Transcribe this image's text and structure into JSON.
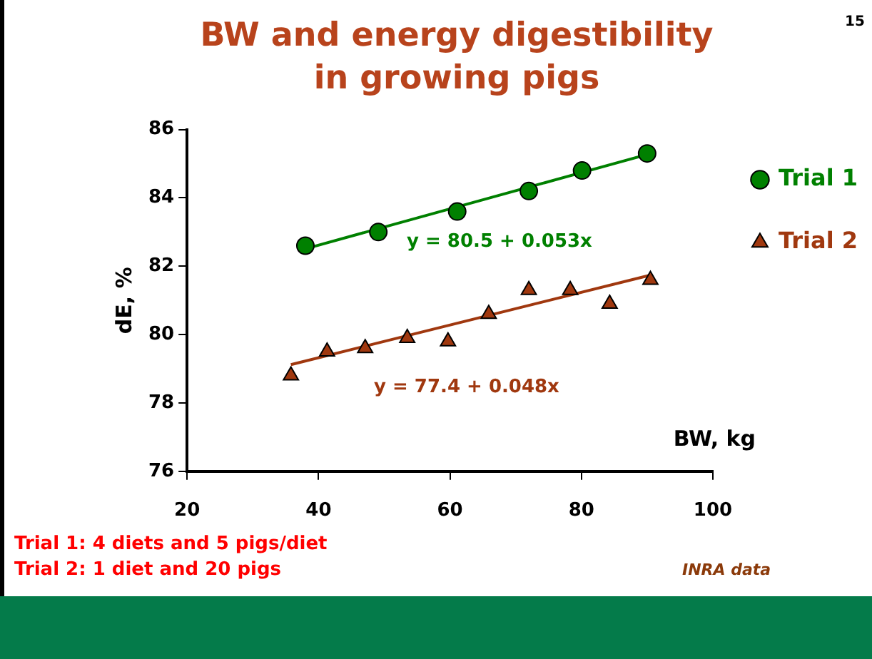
{
  "chart_data": {
    "type": "scatter",
    "title": "BW and energy digestibility in growing pigs",
    "xlabel": "BW, kg",
    "ylabel": "dE, %",
    "xlim": [
      20,
      100
    ],
    "xticks": [
      20,
      40,
      60,
      80,
      100
    ],
    "ylim": [
      76,
      86
    ],
    "yticks": [
      76,
      78,
      80,
      82,
      84,
      86
    ],
    "grid": false,
    "legend": "right",
    "series": [
      {
        "name": "Trial 1",
        "color": "#008000",
        "marker": "circle",
        "x": [
          38.0,
          49.1,
          61.1,
          72.0,
          80.1,
          90.0
        ],
        "values": [
          82.6,
          83.0,
          83.6,
          84.2,
          84.8,
          85.3
        ]
      },
      {
        "name": "Trial 2",
        "color": "#a0380f",
        "marker": "triangle",
        "x": [
          35.8,
          41.3,
          47.1,
          53.5,
          59.7,
          65.9,
          72.0,
          78.3,
          84.3,
          90.5
        ],
        "values": [
          78.8,
          79.5,
          79.6,
          79.9,
          79.8,
          80.6,
          81.3,
          81.3,
          80.9,
          81.6
        ]
      },
      {
        "type": "line",
        "color": "#008000",
        "marker": "none",
        "x": [
          38.0,
          90.0
        ],
        "values": [
          82.51,
          85.27
        ]
      },
      {
        "type": "line",
        "color": "#a0380f",
        "marker": "none",
        "x": [
          35.8,
          90.5
        ],
        "values": [
          79.12,
          81.74
        ]
      }
    ],
    "annotations": [
      "y = 80.5 + 0.053x",
      "y = 77.4 + 0.048x",
      "Trial 1: 4 diets and 5 pigs/diet",
      "Trial 2: 1 diet and 20 pigs",
      "INRA data",
      "15"
    ]
  }
}
